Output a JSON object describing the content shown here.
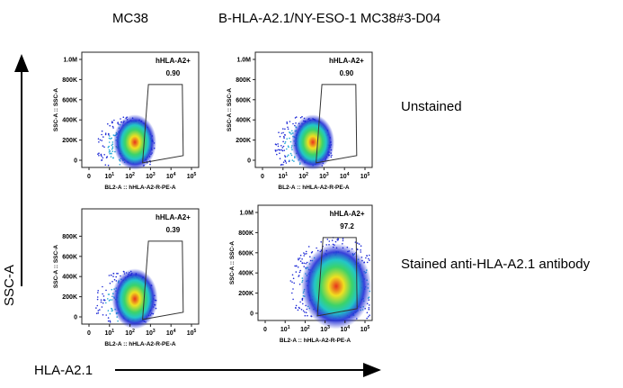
{
  "columns": [
    "MC38",
    "B-HLA-A2.1/NY-ESO-1 MC38#3-D04"
  ],
  "rows": [
    "Unstained",
    "Stained anti-HLA-A2.1 antibody"
  ],
  "y_axis_label": "SSC-A",
  "x_axis_label": "HLA-A2.1",
  "colors": {
    "gate": "#333333",
    "density_low": "#1f2bd6",
    "density_mid": "#22c7c7",
    "density_high": "#f0e020",
    "density_peak": "#e8321e"
  },
  "chart_data": [
    {
      "type": "scatter",
      "column": "MC38",
      "row": "Unstained",
      "gate_name": "hHLA-A2+",
      "gate_value": "0.90",
      "xlabel": "BL2-A :: hHLA-A2-R-PE-A",
      "ylabel": "SSC-A :: SSC-A",
      "y_ticks": [
        "0",
        "200K",
        "400K",
        "600K",
        "800K",
        "1.0M"
      ],
      "x_ticks": [
        "0",
        "10^1",
        "10^2",
        "10^3",
        "10^4",
        "10^5"
      ],
      "x_log_scale": true,
      "ylim": [
        0,
        1000000
      ]
    },
    {
      "type": "scatter",
      "column": "B-HLA-A2.1/NY-ESO-1 MC38#3-D04",
      "row": "Unstained",
      "gate_name": "hHLA-A2+",
      "gate_value": "0.90",
      "xlabel": "BL2-A :: hHLA-A2-R-PE-A",
      "ylabel": "SSC-A :: SSC-A",
      "y_ticks": [
        "0",
        "200K",
        "400K",
        "600K",
        "800K",
        "1.0M"
      ],
      "x_ticks": [
        "0",
        "10^1",
        "10^2",
        "10^3",
        "10^4",
        "10^5"
      ],
      "x_log_scale": true,
      "ylim": [
        0,
        1000000
      ]
    },
    {
      "type": "scatter",
      "column": "MC38",
      "row": "Stained anti-HLA-A2.1 antibody",
      "gate_name": "hHLA-A2+",
      "gate_value": "0.39",
      "xlabel": "BL2-A :: hHLA-A2-R-PE-A",
      "ylabel": "SSC-A :: SSC-A",
      "y_ticks": [
        "0",
        "200K",
        "400K",
        "600K",
        "800K"
      ],
      "x_ticks": [
        "0",
        "10^1",
        "10^2",
        "10^3",
        "10^4",
        "10^5"
      ],
      "x_log_scale": true,
      "ylim": [
        0,
        1000000
      ]
    },
    {
      "type": "scatter",
      "column": "B-HLA-A2.1/NY-ESO-1 MC38#3-D04",
      "row": "Stained anti-HLA-A2.1 antibody",
      "gate_name": "hHLA-A2+",
      "gate_value": "97.2",
      "xlabel": "BL2-A :: hHLA-A2-R-PE-A",
      "ylabel": "SSC-A :: SSC-A",
      "y_ticks": [
        "0",
        "200K",
        "400K",
        "600K",
        "800K",
        "1.0M"
      ],
      "x_ticks": [
        "0",
        "10^1",
        "10^2",
        "10^3",
        "10^4",
        "10^5"
      ],
      "x_log_scale": true,
      "ylim": [
        0,
        1000000
      ]
    }
  ]
}
